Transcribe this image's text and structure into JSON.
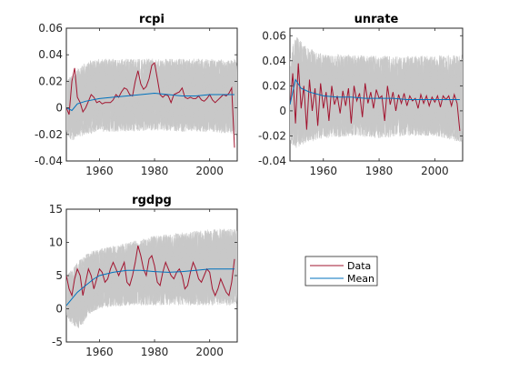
{
  "chart_data": [
    {
      "type": "line",
      "title": "rcpi",
      "xlim": [
        1948,
        2010
      ],
      "ylim": [
        -0.04,
        0.06
      ],
      "xticks": [
        1960,
        1980,
        2000
      ],
      "xtick_labels": [
        "1960",
        "1980",
        "2000"
      ],
      "yticks": [
        -0.04,
        -0.02,
        0,
        0.02,
        0.04,
        0.06
      ],
      "ytick_labels": [
        "-0.04",
        "-0.02",
        "0",
        "0.02",
        "0.04",
        "0.06"
      ],
      "band": {
        "x": [
          1948,
          1950,
          1955,
          1960,
          1970,
          1980,
          1990,
          2000,
          2009
        ],
        "lower": [
          -0.02,
          -0.025,
          -0.02,
          -0.018,
          -0.018,
          -0.017,
          -0.018,
          -0.018,
          -0.02
        ],
        "upper": [
          0.02,
          0.025,
          0.035,
          0.037,
          0.037,
          0.037,
          0.037,
          0.037,
          0.037
        ]
      },
      "series": [
        {
          "name": "Data",
          "color": "#a2142f",
          "x": [
            1948,
            1949,
            1950,
            1951,
            1952,
            1953,
            1954,
            1955,
            1956,
            1957,
            1958,
            1959,
            1960,
            1961,
            1962,
            1963,
            1964,
            1965,
            1966,
            1967,
            1968,
            1969,
            1970,
            1971,
            1972,
            1973,
            1974,
            1975,
            1976,
            1977,
            1978,
            1979,
            1980,
            1981,
            1982,
            1983,
            1984,
            1985,
            1986,
            1987,
            1988,
            1989,
            1990,
            1991,
            1992,
            1993,
            1994,
            1995,
            1996,
            1997,
            1998,
            1999,
            2000,
            2001,
            2002,
            2003,
            2004,
            2005,
            2006,
            2007,
            2008,
            2009
          ],
          "y": [
            0.0,
            -0.005,
            0.02,
            0.03,
            0.008,
            0.004,
            -0.003,
            0.0,
            0.005,
            0.01,
            0.008,
            0.004,
            0.005,
            0.003,
            0.004,
            0.004,
            0.004,
            0.006,
            0.01,
            0.008,
            0.012,
            0.015,
            0.014,
            0.01,
            0.009,
            0.02,
            0.028,
            0.018,
            0.014,
            0.016,
            0.022,
            0.032,
            0.034,
            0.022,
            0.01,
            0.008,
            0.01,
            0.009,
            0.004,
            0.01,
            0.011,
            0.012,
            0.015,
            0.008,
            0.007,
            0.008,
            0.007,
            0.007,
            0.009,
            0.006,
            0.005,
            0.007,
            0.01,
            0.006,
            0.004,
            0.006,
            0.008,
            0.01,
            0.009,
            0.011,
            0.015,
            -0.03
          ]
        },
        {
          "name": "Mean",
          "color": "#0072bd",
          "x": [
            1948,
            1950,
            1952,
            1955,
            1960,
            1965,
            1970,
            1975,
            1980,
            1985,
            1990,
            1995,
            2000,
            2005,
            2009
          ],
          "y": [
            0.0,
            -0.002,
            0.003,
            0.005,
            0.007,
            0.008,
            0.009,
            0.01,
            0.011,
            0.01,
            0.009,
            0.009,
            0.01,
            0.01,
            0.01
          ]
        }
      ]
    },
    {
      "type": "line",
      "title": "unrate",
      "xlim": [
        1948,
        2010
      ],
      "ylim": [
        -0.04,
        0.066
      ],
      "xticks": [
        1960,
        1980,
        2000
      ],
      "xtick_labels": [
        "1960",
        "1980",
        "2000"
      ],
      "yticks": [
        -0.04,
        -0.02,
        0,
        0.02,
        0.04,
        0.06
      ],
      "ytick_labels": [
        "-0.04",
        "-0.02",
        "0",
        "0.02",
        "0.04",
        "0.06"
      ],
      "band": {
        "x": [
          1948,
          1950,
          1955,
          1960,
          1970,
          1980,
          1990,
          2000,
          2009
        ],
        "lower": [
          -0.025,
          -0.03,
          -0.025,
          -0.022,
          -0.02,
          -0.022,
          -0.02,
          -0.02,
          -0.025
        ],
        "upper": [
          0.045,
          0.06,
          0.05,
          0.045,
          0.045,
          0.044,
          0.044,
          0.044,
          0.045
        ]
      },
      "series": [
        {
          "name": "Data",
          "color": "#a2142f",
          "x": [
            1948,
            1949,
            1950,
            1951,
            1952,
            1953,
            1954,
            1955,
            1956,
            1957,
            1958,
            1959,
            1960,
            1961,
            1962,
            1963,
            1964,
            1965,
            1966,
            1967,
            1968,
            1969,
            1970,
            1971,
            1972,
            1973,
            1974,
            1975,
            1976,
            1977,
            1978,
            1979,
            1980,
            1981,
            1982,
            1983,
            1984,
            1985,
            1986,
            1987,
            1988,
            1989,
            1990,
            1991,
            1992,
            1993,
            1994,
            1995,
            1996,
            1997,
            1998,
            1999,
            2000,
            2001,
            2002,
            2003,
            2004,
            2005,
            2006,
            2007,
            2008,
            2009
          ],
          "y": [
            0.005,
            0.03,
            -0.01,
            0.038,
            0.002,
            0.02,
            -0.015,
            0.025,
            0.0,
            0.018,
            -0.012,
            0.022,
            0.002,
            0.015,
            -0.008,
            0.02,
            0.005,
            0.012,
            -0.002,
            0.016,
            0.004,
            0.018,
            -0.01,
            0.02,
            0.008,
            0.014,
            -0.005,
            0.022,
            0.006,
            0.015,
            0.002,
            0.017,
            0.01,
            0.012,
            -0.008,
            0.02,
            0.005,
            0.015,
            0.0,
            0.013,
            0.006,
            0.014,
            0.004,
            0.012,
            0.008,
            0.01,
            0.002,
            0.013,
            0.006,
            0.012,
            0.004,
            0.011,
            0.007,
            0.012,
            0.003,
            0.012,
            0.009,
            0.012,
            0.004,
            0.013,
            0.006,
            -0.016
          ]
        },
        {
          "name": "Mean",
          "color": "#0072bd",
          "x": [
            1948,
            1950,
            1952,
            1955,
            1960,
            1965,
            1970,
            1975,
            1980,
            1985,
            1990,
            1995,
            2000,
            2005,
            2009
          ],
          "y": [
            0.005,
            0.025,
            0.018,
            0.015,
            0.012,
            0.011,
            0.011,
            0.01,
            0.01,
            0.01,
            0.009,
            0.009,
            0.009,
            0.009,
            0.009
          ]
        }
      ]
    },
    {
      "type": "line",
      "title": "rgdpg",
      "xlim": [
        1948,
        2010
      ],
      "ylim": [
        -5,
        15
      ],
      "xticks": [
        1960,
        1980,
        2000
      ],
      "xtick_labels": [
        "1960",
        "1980",
        "2000"
      ],
      "yticks": [
        -5,
        0,
        5,
        10,
        15
      ],
      "ytick_labels": [
        "-5",
        "0",
        "5",
        "10",
        "15"
      ],
      "band": {
        "x": [
          1948,
          1950,
          1953,
          1956,
          1960,
          1970,
          1980,
          1990,
          2000,
          2009
        ],
        "lower": [
          -1,
          -2.5,
          -3,
          -1,
          0,
          0.5,
          0.5,
          0.5,
          0.5,
          0.5
        ],
        "upper": [
          5,
          6,
          7.5,
          8.5,
          9,
          10,
          11,
          11.5,
          12,
          12
        ]
      },
      "series": [
        {
          "name": "Data",
          "color": "#a2142f",
          "x": [
            1948,
            1949,
            1950,
            1951,
            1952,
            1953,
            1954,
            1955,
            1956,
            1957,
            1958,
            1959,
            1960,
            1961,
            1962,
            1963,
            1964,
            1965,
            1966,
            1967,
            1968,
            1969,
            1970,
            1971,
            1972,
            1973,
            1974,
            1975,
            1976,
            1977,
            1978,
            1979,
            1980,
            1981,
            1982,
            1983,
            1984,
            1985,
            1986,
            1987,
            1988,
            1989,
            1990,
            1991,
            1992,
            1993,
            1994,
            1995,
            1996,
            1997,
            1998,
            1999,
            2000,
            2001,
            2002,
            2003,
            2004,
            2005,
            2006,
            2007,
            2008,
            2009
          ],
          "y": [
            5,
            3,
            2,
            4.5,
            6,
            5,
            2,
            4,
            6,
            5,
            3,
            4.5,
            6,
            5.5,
            4,
            4.5,
            6,
            7,
            6,
            5,
            6,
            7,
            4,
            3.5,
            5,
            7,
            9.5,
            8,
            6,
            5,
            7.5,
            8,
            6.5,
            4,
            3.5,
            5.5,
            7,
            6,
            5,
            4.5,
            5.5,
            6,
            5,
            3,
            3.5,
            5.5,
            7,
            6,
            4.5,
            4,
            5,
            6,
            5.5,
            3,
            2,
            3,
            4.5,
            3.5,
            2.5,
            2,
            4,
            7.5
          ]
        },
        {
          "name": "Mean",
          "color": "#0072bd",
          "x": [
            1948,
            1950,
            1952,
            1955,
            1958,
            1960,
            1965,
            1970,
            1975,
            1980,
            1985,
            1990,
            1995,
            2000,
            2005,
            2009
          ],
          "y": [
            0.5,
            1.5,
            2.5,
            3.5,
            4.5,
            5,
            5.5,
            5.8,
            5.8,
            5.6,
            5.5,
            5.6,
            5.8,
            6,
            6,
            6
          ]
        }
      ]
    }
  ],
  "legend": {
    "items": [
      {
        "label": "Data",
        "color": "#a2142f"
      },
      {
        "label": "Mean",
        "color": "#0072bd"
      }
    ]
  }
}
